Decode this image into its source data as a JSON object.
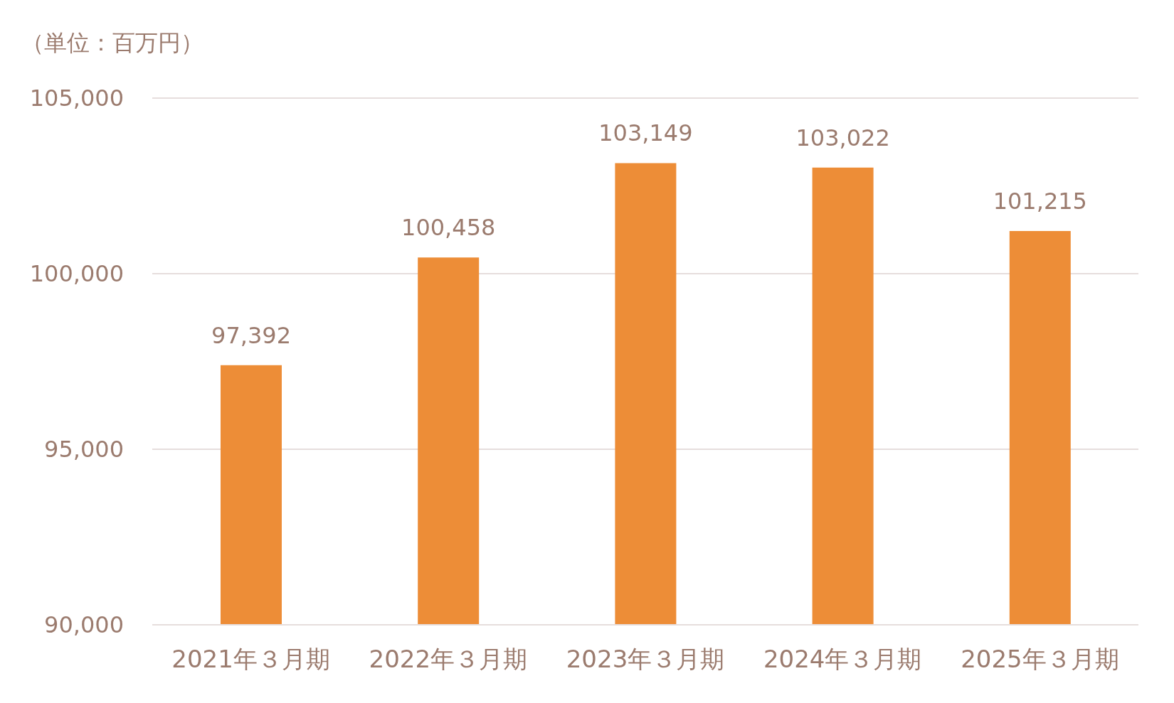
{
  "chart_data": {
    "type": "bar",
    "ylabel": "（単位：百万円）",
    "categories": [
      "2021年３月期",
      "2022年３月期",
      "2023年３月期",
      "2024年３月期",
      "2025年３月期"
    ],
    "values": [
      97392,
      100458,
      103149,
      103022,
      101215
    ],
    "value_labels": [
      "97,392",
      "100,458",
      "103,149",
      "103,022",
      "101,215"
    ],
    "color": "#ed8d37",
    "ylim": [
      90000,
      105000
    ],
    "yticks": [
      {
        "value": 90000,
        "label": "90,000"
      },
      {
        "value": 95000,
        "label": "95,000"
      },
      {
        "value": 100000,
        "label": "100,000"
      },
      {
        "value": 105000,
        "label": "105,000"
      }
    ],
    "grid": "y"
  }
}
